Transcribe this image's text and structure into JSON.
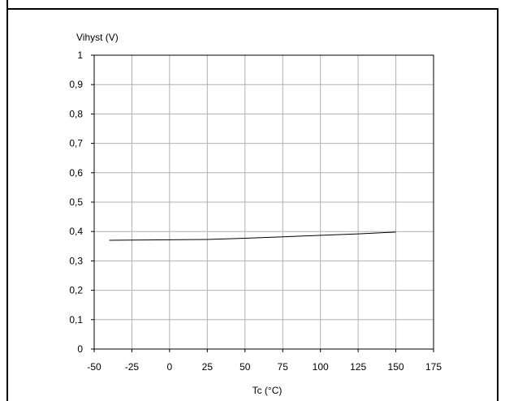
{
  "chart_data": {
    "type": "line",
    "title": "",
    "xlabel": "Tc (°C)",
    "ylabel": "Vihyst (V)",
    "xlim": [
      -50,
      175
    ],
    "ylim": [
      0,
      1
    ],
    "x_ticks": [
      -50,
      -25,
      0,
      25,
      50,
      75,
      100,
      125,
      150,
      175
    ],
    "x_tick_labels": [
      "-50",
      "-25",
      "0",
      "25",
      "50",
      "75",
      "100",
      "125",
      "150",
      "175"
    ],
    "y_ticks": [
      0,
      0.1,
      0.2,
      0.3,
      0.4,
      0.5,
      0.6,
      0.7,
      0.8,
      0.9,
      1
    ],
    "y_tick_labels": [
      "0",
      "0,1",
      "0,2",
      "0,3",
      "0,4",
      "0,5",
      "0,6",
      "0,7",
      "0,8",
      "0,9",
      "1"
    ],
    "grid": true,
    "legend": "none",
    "line_color": "#000000",
    "grid_color": "#b0b0b0",
    "series": [
      {
        "x": [
          -40,
          0,
          25,
          50,
          75,
          100,
          125,
          150
        ],
        "values": [
          0.37,
          0.372,
          0.373,
          0.377,
          0.382,
          0.387,
          0.392,
          0.398
        ]
      }
    ]
  }
}
